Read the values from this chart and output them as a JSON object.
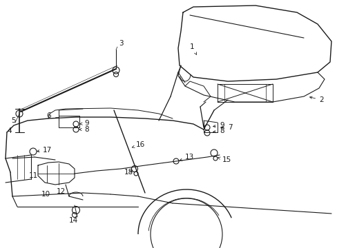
{
  "bg_color": "#ffffff",
  "line_color": "#1a1a1a",
  "fig_width": 4.89,
  "fig_height": 3.6,
  "dpi": 100,
  "font_size": 7.5
}
